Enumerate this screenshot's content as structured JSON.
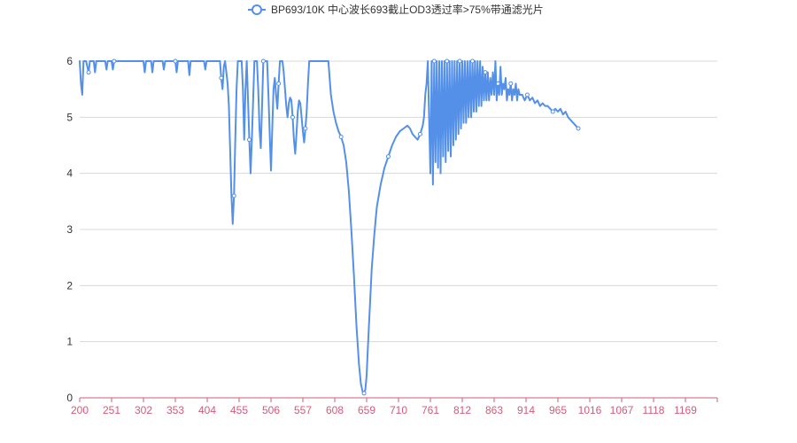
{
  "chart_data": {
    "type": "line",
    "legend_position": "top-center",
    "grid": true,
    "colors": {
      "series": "#5490e8",
      "x_axis": "#d35b78",
      "grid": "#d8d8d8",
      "text": "#333333"
    },
    "x": {
      "ticks": [
        "200",
        "251",
        "302",
        "353",
        "404",
        "455",
        "506",
        "557",
        "608",
        "659",
        "710",
        "761",
        "812",
        "863",
        "914",
        "965",
        "1016",
        "1067",
        "1118",
        "1169"
      ],
      "range": [
        200,
        1200
      ]
    },
    "y": {
      "ticks": [
        "0",
        "1",
        "2",
        "3",
        "4",
        "5",
        "6"
      ],
      "range": [
        0,
        6
      ]
    },
    "series": [
      {
        "name": "BP693/10K 中心波长693截止OD3透过率>75%带通滤光片",
        "points": [
          [
            200,
            6.0
          ],
          [
            202,
            5.6
          ],
          [
            204,
            5.4
          ],
          [
            206,
            6.0
          ],
          [
            210,
            6.0
          ],
          [
            214,
            5.8
          ],
          [
            216,
            6.0
          ],
          [
            222,
            6.0
          ],
          [
            224,
            5.8
          ],
          [
            226,
            6.0
          ],
          [
            240,
            6.0
          ],
          [
            242,
            5.85
          ],
          [
            244,
            6.0
          ],
          [
            250,
            6.0
          ],
          [
            252,
            5.85
          ],
          [
            254,
            6.0
          ],
          [
            300,
            6.0
          ],
          [
            302,
            5.8
          ],
          [
            304,
            6.0
          ],
          [
            312,
            6.0
          ],
          [
            314,
            5.8
          ],
          [
            316,
            6.0
          ],
          [
            330,
            6.0
          ],
          [
            332,
            5.85
          ],
          [
            334,
            6.0
          ],
          [
            350,
            6.0
          ],
          [
            352,
            5.8
          ],
          [
            354,
            6.0
          ],
          [
            370,
            6.0
          ],
          [
            372,
            5.75
          ],
          [
            374,
            6.0
          ],
          [
            395,
            6.0
          ],
          [
            397,
            5.85
          ],
          [
            399,
            6.0
          ],
          [
            420,
            6.0
          ],
          [
            422,
            5.7
          ],
          [
            424,
            5.5
          ],
          [
            426,
            5.9
          ],
          [
            428,
            6.0
          ],
          [
            430,
            5.8
          ],
          [
            432,
            5.6
          ],
          [
            434,
            5.2
          ],
          [
            436,
            4.4
          ],
          [
            438,
            3.6
          ],
          [
            440,
            3.1
          ],
          [
            442,
            3.6
          ],
          [
            444,
            4.6
          ],
          [
            446,
            5.5
          ],
          [
            448,
            6.0
          ],
          [
            454,
            6.0
          ],
          [
            456,
            5.5
          ],
          [
            458,
            4.6
          ],
          [
            460,
            5.5
          ],
          [
            462,
            6.0
          ],
          [
            464,
            5.3
          ],
          [
            466,
            4.6
          ],
          [
            468,
            4.0
          ],
          [
            470,
            4.6
          ],
          [
            472,
            5.3
          ],
          [
            474,
            6.0
          ],
          [
            478,
            6.0
          ],
          [
            480,
            5.5
          ],
          [
            482,
            4.8
          ],
          [
            484,
            4.45
          ],
          [
            486,
            5.2
          ],
          [
            488,
            6.0
          ],
          [
            494,
            6.0
          ],
          [
            496,
            5.4
          ],
          [
            498,
            4.7
          ],
          [
            500,
            4.05
          ],
          [
            502,
            4.8
          ],
          [
            504,
            5.5
          ],
          [
            506,
            5.7
          ],
          [
            508,
            5.4
          ],
          [
            510,
            5.15
          ],
          [
            512,
            5.6
          ],
          [
            514,
            6.0
          ],
          [
            518,
            6.0
          ],
          [
            520,
            5.8
          ],
          [
            522,
            5.5
          ],
          [
            524,
            5.2
          ],
          [
            526,
            5.0
          ],
          [
            528,
            5.25
          ],
          [
            530,
            5.35
          ],
          [
            532,
            5.3
          ],
          [
            534,
            5.0
          ],
          [
            536,
            4.6
          ],
          [
            538,
            4.35
          ],
          [
            540,
            4.7
          ],
          [
            542,
            5.1
          ],
          [
            544,
            5.3
          ],
          [
            546,
            5.25
          ],
          [
            548,
            5.0
          ],
          [
            550,
            4.75
          ],
          [
            552,
            4.55
          ],
          [
            554,
            4.8
          ],
          [
            556,
            5.1
          ],
          [
            558,
            5.6
          ],
          [
            560,
            6.0
          ],
          [
            590,
            6.0
          ],
          [
            592,
            5.7
          ],
          [
            594,
            5.4
          ],
          [
            598,
            5.1
          ],
          [
            602,
            4.9
          ],
          [
            606,
            4.75
          ],
          [
            610,
            4.65
          ],
          [
            614,
            4.5
          ],
          [
            618,
            4.2
          ],
          [
            622,
            3.7
          ],
          [
            626,
            3.0
          ],
          [
            630,
            2.2
          ],
          [
            634,
            1.3
          ],
          [
            638,
            0.6
          ],
          [
            641,
            0.25
          ],
          [
            644,
            0.1
          ],
          [
            646,
            0.08
          ],
          [
            648,
            0.15
          ],
          [
            650,
            0.4
          ],
          [
            652,
            0.9
          ],
          [
            655,
            1.6
          ],
          [
            658,
            2.3
          ],
          [
            662,
            2.9
          ],
          [
            666,
            3.4
          ],
          [
            672,
            3.8
          ],
          [
            678,
            4.1
          ],
          [
            684,
            4.3
          ],
          [
            690,
            4.5
          ],
          [
            696,
            4.65
          ],
          [
            702,
            4.75
          ],
          [
            708,
            4.8
          ],
          [
            714,
            4.85
          ],
          [
            718,
            4.8
          ],
          [
            722,
            4.7
          ],
          [
            726,
            4.65
          ],
          [
            730,
            4.6
          ],
          [
            734,
            4.7
          ],
          [
            738,
            4.85
          ],
          [
            740,
            5.0
          ],
          [
            742,
            5.4
          ],
          [
            744,
            5.6
          ],
          [
            746,
            6.0
          ],
          [
            748,
            5.0
          ],
          [
            750,
            4.0
          ],
          [
            752,
            6.0
          ],
          [
            754,
            3.8
          ],
          [
            756,
            6.0
          ],
          [
            758,
            4.2
          ],
          [
            760,
            6.0
          ],
          [
            762,
            4.1
          ],
          [
            764,
            6.0
          ],
          [
            766,
            4.0
          ],
          [
            768,
            6.0
          ],
          [
            770,
            4.3
          ],
          [
            772,
            6.0
          ],
          [
            774,
            4.2
          ],
          [
            776,
            6.0
          ],
          [
            778,
            4.4
          ],
          [
            780,
            6.0
          ],
          [
            782,
            4.3
          ],
          [
            784,
            6.0
          ],
          [
            786,
            4.5
          ],
          [
            788,
            6.0
          ],
          [
            790,
            4.6
          ],
          [
            792,
            6.0
          ],
          [
            794,
            4.7
          ],
          [
            796,
            6.0
          ],
          [
            798,
            4.8
          ],
          [
            800,
            6.0
          ],
          [
            802,
            4.9
          ],
          [
            804,
            6.0
          ],
          [
            806,
            4.9
          ],
          [
            808,
            6.0
          ],
          [
            810,
            5.0
          ],
          [
            812,
            6.0
          ],
          [
            814,
            5.0
          ],
          [
            816,
            6.0
          ],
          [
            818,
            5.1
          ],
          [
            820,
            6.0
          ],
          [
            822,
            5.1
          ],
          [
            824,
            6.0
          ],
          [
            826,
            5.2
          ],
          [
            828,
            6.0
          ],
          [
            830,
            5.2
          ],
          [
            832,
            5.9
          ],
          [
            834,
            5.3
          ],
          [
            836,
            5.8
          ],
          [
            838,
            5.3
          ],
          [
            840,
            5.8
          ],
          [
            842,
            5.3
          ],
          [
            844,
            5.7
          ],
          [
            846,
            5.4
          ],
          [
            848,
            5.8
          ],
          [
            850,
            5.4
          ],
          [
            852,
            6.0
          ],
          [
            854,
            5.3
          ],
          [
            856,
            5.6
          ],
          [
            858,
            5.4
          ],
          [
            860,
            5.9
          ],
          [
            862,
            5.4
          ],
          [
            864,
            5.6
          ],
          [
            866,
            5.5
          ],
          [
            868,
            5.7
          ],
          [
            870,
            5.3
          ],
          [
            872,
            5.5
          ],
          [
            874,
            5.4
          ],
          [
            876,
            5.6
          ],
          [
            878,
            5.3
          ],
          [
            880,
            5.5
          ],
          [
            882,
            5.4
          ],
          [
            884,
            5.6
          ],
          [
            886,
            5.3
          ],
          [
            888,
            5.5
          ],
          [
            890,
            5.4
          ],
          [
            894,
            5.4
          ],
          [
            898,
            5.3
          ],
          [
            902,
            5.4
          ],
          [
            906,
            5.3
          ],
          [
            910,
            5.35
          ],
          [
            914,
            5.25
          ],
          [
            918,
            5.3
          ],
          [
            922,
            5.2
          ],
          [
            926,
            5.25
          ],
          [
            930,
            5.2
          ],
          [
            934,
            5.2
          ],
          [
            938,
            5.15
          ],
          [
            942,
            5.1
          ],
          [
            946,
            5.15
          ],
          [
            950,
            5.1
          ],
          [
            954,
            5.15
          ],
          [
            958,
            5.05
          ],
          [
            962,
            5.1
          ],
          [
            966,
            5.0
          ],
          [
            970,
            4.95
          ],
          [
            974,
            4.9
          ],
          [
            978,
            4.85
          ],
          [
            982,
            4.8
          ]
        ]
      }
    ]
  }
}
